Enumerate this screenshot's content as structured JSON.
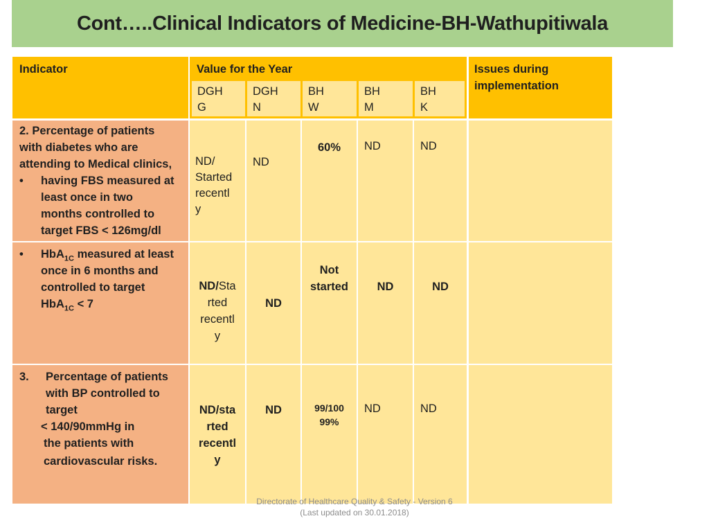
{
  "title": "Cont…..Clinical Indicators of Medicine-BH-Wathupitiwala",
  "header": {
    "indicator": "Indicator",
    "value_for_year": "Value for the Year",
    "issues": [
      "Issues during",
      "implementation"
    ],
    "columns": [
      [
        "DGH",
        "G"
      ],
      [
        "DGH",
        "N"
      ],
      [
        "BH",
        "W"
      ],
      [
        "BH",
        "M"
      ],
      [
        "BH",
        "K"
      ]
    ]
  },
  "rows": [
    {
      "indicator_lines": [
        "2.  Percentage of patients",
        "with diabetes who are",
        "attending to Medical clinics,"
      ],
      "bullet_lines": [
        "having FBS measured at",
        "least once in two",
        "months controlled to",
        "target FBS < 126mg/dl"
      ],
      "values": {
        "dghg": [
          "ND/",
          "Started",
          "recentl",
          "y"
        ],
        "dghn": "ND",
        "bhw": "60%",
        "bhm": "ND",
        "bhk": "ND"
      }
    },
    {
      "bullet_lines": [
        "measured at least",
        "once in 6 months and",
        "controlled to target"
      ],
      "hba": "HbA",
      "sub": "1C",
      "lt7": "< 7",
      "values": {
        "dghg_bold": "ND/",
        "dghg_rest": "Sta",
        "dghg_lines": [
          "rted",
          "recentl",
          "y"
        ],
        "dghn": "ND",
        "bhw": [
          "Not",
          "started"
        ],
        "bhm": "ND",
        "bhk": "ND"
      }
    },
    {
      "indicator_lines": [
        "3.",
        "Percentage of patients",
        "with BP controlled to",
        "target",
        "< 140/90mmHg in",
        "the patients with",
        "cardiovascular risks."
      ],
      "values": {
        "dghg": [
          "ND/sta",
          "rted",
          "recentl",
          "y"
        ],
        "dghn": "ND",
        "bhw": [
          "99/100",
          "99%"
        ],
        "bhm": "ND",
        "bhk": "ND"
      }
    }
  ],
  "footer": [
    "Directorate of Healthcare Quality & Safety - Version 6",
    "(Last updated on 30.01.2018)"
  ]
}
